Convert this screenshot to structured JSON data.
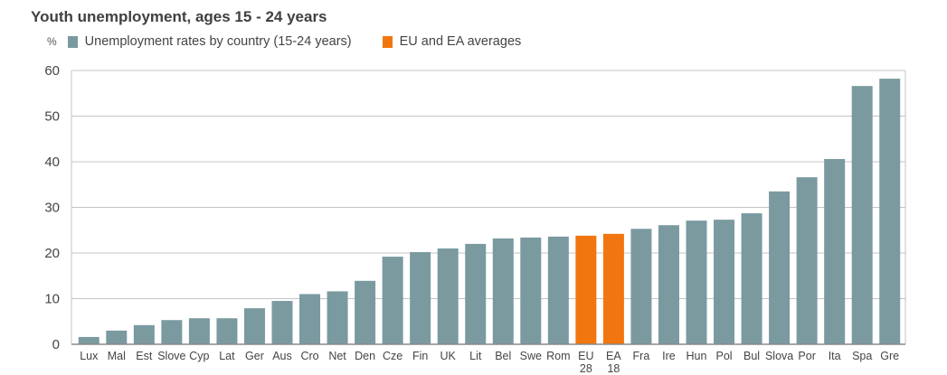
{
  "chart_data": {
    "type": "bar",
    "title": "Youth unemployment, ages 15 - 24 years",
    "ylabel": "%",
    "xlabel": "",
    "ylim": [
      0,
      60
    ],
    "yticks": [
      0,
      10,
      20,
      30,
      40,
      50,
      60
    ],
    "grid": true,
    "legend_position": "top-left",
    "legend": [
      {
        "label": "Unemployment rates by country (15-24 years)",
        "color": "#7a9aa0"
      },
      {
        "label": "EU and EA averages",
        "color": "#f2760f"
      }
    ],
    "categories": [
      "Lux",
      "Mal",
      "Est",
      "Slove",
      "Cyp",
      "Lat",
      "Ger",
      "Aus",
      "Cro",
      "Net",
      "Den",
      "Cze",
      "Fin",
      "UK",
      "Lit",
      "Bel",
      "Swe",
      "Rom",
      "EU 28",
      "EA 18",
      "Fra",
      "Ire",
      "Hun",
      "Pol",
      "Bul",
      "Slova",
      "Por",
      "Ita",
      "Spa",
      "Gre"
    ],
    "series": [
      {
        "name": "Youth unemployment rate",
        "values": [
          1.6,
          3.0,
          4.2,
          5.3,
          5.7,
          5.7,
          7.9,
          9.5,
          11.0,
          11.6,
          13.9,
          19.2,
          20.2,
          21.0,
          22.0,
          23.2,
          23.4,
          23.6,
          23.8,
          24.2,
          25.3,
          26.1,
          27.1,
          27.3,
          28.7,
          33.5,
          36.6,
          40.6,
          56.6,
          58.2
        ],
        "highlight": [
          false,
          false,
          false,
          false,
          false,
          false,
          false,
          false,
          false,
          false,
          false,
          false,
          false,
          false,
          false,
          false,
          false,
          false,
          true,
          true,
          false,
          false,
          false,
          false,
          false,
          false,
          false,
          false,
          false,
          false
        ]
      }
    ]
  }
}
